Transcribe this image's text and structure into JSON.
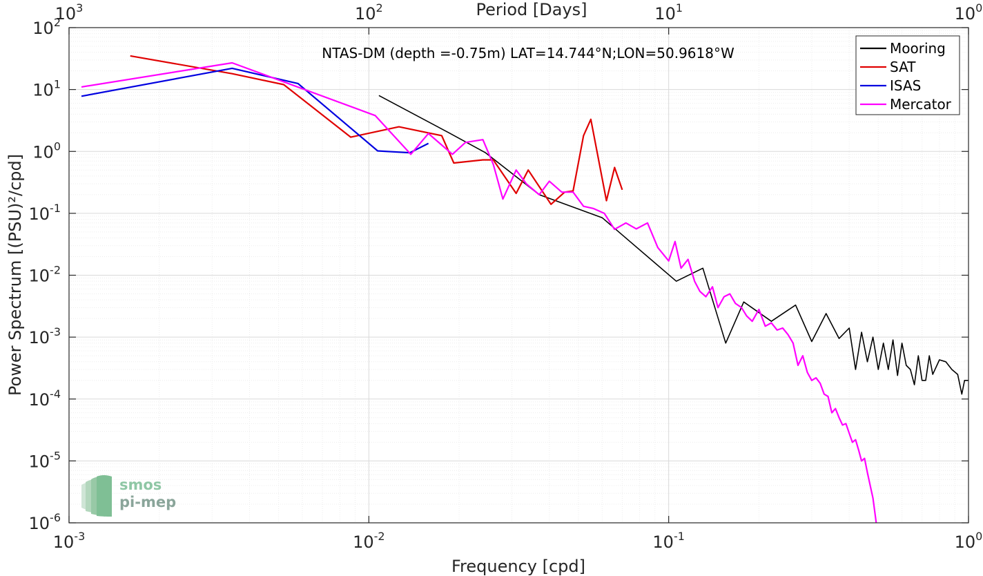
{
  "chart_data": {
    "type": "line",
    "title": "NTAS-DM (depth =-0.75m) LAT=14.744°N;LON=50.9618°W",
    "xlabel": "Frequency [cpd]",
    "ylabel": "Power Spectrum [(PSU)²/cpd]",
    "x2label": "Period [Days]",
    "x_scale": "log",
    "y_scale": "log",
    "xlim": [
      0.001,
      1
    ],
    "ylim": [
      1e-06,
      100
    ],
    "x_ticks": [
      {
        "base": "10",
        "exp": "-3",
        "value": 0.001
      },
      {
        "base": "10",
        "exp": "-2",
        "value": 0.01
      },
      {
        "base": "10",
        "exp": "-1",
        "value": 0.1
      },
      {
        "base": "10",
        "exp": "0",
        "value": 1
      }
    ],
    "x2_ticks": [
      {
        "base": "10",
        "exp": "3",
        "value": 0.001
      },
      {
        "base": "10",
        "exp": "2",
        "value": 0.01
      },
      {
        "base": "10",
        "exp": "1",
        "value": 0.1
      },
      {
        "base": "10",
        "exp": "0",
        "value": 1
      }
    ],
    "y_ticks": [
      {
        "base": "10",
        "exp": "-6",
        "value": 1e-06
      },
      {
        "base": "10",
        "exp": "-5",
        "value": 1e-05
      },
      {
        "base": "10",
        "exp": "-4",
        "value": 0.0001
      },
      {
        "base": "10",
        "exp": "-3",
        "value": 0.001
      },
      {
        "base": "10",
        "exp": "-2",
        "value": 0.01
      },
      {
        "base": "10",
        "exp": "-1",
        "value": 0.1
      },
      {
        "base": "10",
        "exp": "0",
        "value": 1
      },
      {
        "base": "10",
        "exp": "1",
        "value": 10
      },
      {
        "base": "10",
        "exp": "2",
        "value": 100
      }
    ],
    "grid": true,
    "legend_position": "top-right",
    "series": [
      {
        "name": "Mooring",
        "color": "#000000",
        "points": [
          [
            0.0108,
            8
          ],
          [
            0.0185,
            2
          ],
          [
            0.0245,
            0.95
          ],
          [
            0.037,
            0.2
          ],
          [
            0.06,
            0.085
          ],
          [
            0.106,
            0.008
          ],
          [
            0.13,
            0.013
          ],
          [
            0.155,
            0.0008
          ],
          [
            0.178,
            0.0037
          ],
          [
            0.22,
            0.0018
          ],
          [
            0.265,
            0.0033
          ],
          [
            0.3,
            0.00085
          ],
          [
            0.335,
            0.0024
          ],
          [
            0.37,
            0.00095
          ],
          [
            0.4,
            0.0014
          ],
          [
            0.42,
            0.0003
          ],
          [
            0.44,
            0.0012
          ],
          [
            0.46,
            0.0004
          ],
          [
            0.48,
            0.001
          ],
          [
            0.5,
            0.0003
          ],
          [
            0.52,
            0.0008
          ],
          [
            0.54,
            0.0003
          ],
          [
            0.56,
            0.0009
          ],
          [
            0.58,
            0.00024
          ],
          [
            0.6,
            0.0008
          ],
          [
            0.62,
            0.00035
          ],
          [
            0.64,
            0.0003
          ],
          [
            0.66,
            0.00017
          ],
          [
            0.68,
            0.0005
          ],
          [
            0.7,
            0.0002
          ],
          [
            0.72,
            0.0002
          ],
          [
            0.74,
            0.0005
          ],
          [
            0.76,
            0.00025
          ],
          [
            0.8,
            0.00043
          ],
          [
            0.84,
            0.0004
          ],
          [
            0.88,
            0.0003
          ],
          [
            0.92,
            0.00025
          ],
          [
            0.95,
            0.00012
          ],
          [
            0.97,
            0.0002
          ],
          [
            1.0,
            0.0002
          ]
        ]
      },
      {
        "name": "SAT",
        "color": "#e00000",
        "points": [
          [
            0.0016,
            35
          ],
          [
            0.0035,
            18
          ],
          [
            0.0052,
            12
          ],
          [
            0.0087,
            1.7
          ],
          [
            0.0126,
            2.5
          ],
          [
            0.0175,
            1.8
          ],
          [
            0.0192,
            0.65
          ],
          [
            0.024,
            0.73
          ],
          [
            0.026,
            0.73
          ],
          [
            0.031,
            0.21
          ],
          [
            0.034,
            0.5
          ],
          [
            0.0405,
            0.14
          ],
          [
            0.045,
            0.22
          ],
          [
            0.048,
            0.23
          ],
          [
            0.052,
            1.8
          ],
          [
            0.055,
            3.3
          ],
          [
            0.062,
            0.16
          ],
          [
            0.066,
            0.55
          ],
          [
            0.07,
            0.24
          ]
        ]
      },
      {
        "name": "ISAS",
        "color": "#0000e0",
        "points": [
          [
            0.0011,
            7.8
          ],
          [
            0.0035,
            22
          ],
          [
            0.0058,
            12.5
          ],
          [
            0.0107,
            1.02
          ],
          [
            0.0137,
            0.95
          ],
          [
            0.0158,
            1.35
          ]
        ]
      },
      {
        "name": "Mercator",
        "color": "#ff00ff",
        "points": [
          [
            0.0011,
            11
          ],
          [
            0.0035,
            27
          ],
          [
            0.0105,
            3.8
          ],
          [
            0.0138,
            0.9
          ],
          [
            0.0158,
            1.95
          ],
          [
            0.019,
            0.9
          ],
          [
            0.021,
            1.4
          ],
          [
            0.024,
            1.55
          ],
          [
            0.026,
            0.62
          ],
          [
            0.028,
            0.17
          ],
          [
            0.031,
            0.5
          ],
          [
            0.0335,
            0.3
          ],
          [
            0.037,
            0.2
          ],
          [
            0.04,
            0.33
          ],
          [
            0.044,
            0.22
          ],
          [
            0.048,
            0.22
          ],
          [
            0.052,
            0.13
          ],
          [
            0.056,
            0.12
          ],
          [
            0.061,
            0.1
          ],
          [
            0.066,
            0.055
          ],
          [
            0.072,
            0.07
          ],
          [
            0.078,
            0.056
          ],
          [
            0.085,
            0.07
          ],
          [
            0.092,
            0.028
          ],
          [
            0.1,
            0.017
          ],
          [
            0.105,
            0.035
          ],
          [
            0.11,
            0.013
          ],
          [
            0.116,
            0.018
          ],
          [
            0.122,
            0.008
          ],
          [
            0.127,
            0.0055
          ],
          [
            0.133,
            0.0045
          ],
          [
            0.14,
            0.0065
          ],
          [
            0.146,
            0.003
          ],
          [
            0.153,
            0.0045
          ],
          [
            0.16,
            0.005
          ],
          [
            0.167,
            0.0035
          ],
          [
            0.175,
            0.003
          ],
          [
            0.182,
            0.0022
          ],
          [
            0.19,
            0.0018
          ],
          [
            0.2,
            0.0028
          ],
          [
            0.21,
            0.0015
          ],
          [
            0.22,
            0.0017
          ],
          [
            0.23,
            0.0013
          ],
          [
            0.24,
            0.0014
          ],
          [
            0.25,
            0.0011
          ],
          [
            0.26,
            0.0008
          ],
          [
            0.27,
            0.00035
          ],
          [
            0.28,
            0.0005
          ],
          [
            0.29,
            0.00027
          ],
          [
            0.3,
            0.0002
          ],
          [
            0.31,
            0.00022
          ],
          [
            0.32,
            0.00018
          ],
          [
            0.33,
            0.00012
          ],
          [
            0.34,
            0.00011
          ],
          [
            0.35,
            6e-05
          ],
          [
            0.36,
            7e-05
          ],
          [
            0.37,
            5e-05
          ],
          [
            0.38,
            3.8e-05
          ],
          [
            0.39,
            4e-05
          ],
          [
            0.4,
            2.8e-05
          ],
          [
            0.41,
            2e-05
          ],
          [
            0.42,
            2.2e-05
          ],
          [
            0.43,
            1.5e-05
          ],
          [
            0.44,
            1e-05
          ],
          [
            0.45,
            1.1e-05
          ],
          [
            0.46,
            6.5e-06
          ],
          [
            0.47,
            4e-06
          ],
          [
            0.48,
            2.5e-06
          ],
          [
            0.49,
            1.2e-06
          ],
          [
            0.495,
            8e-07
          ]
        ]
      }
    ]
  },
  "logo": {
    "line1": "smos",
    "line2": "pi-mep"
  }
}
